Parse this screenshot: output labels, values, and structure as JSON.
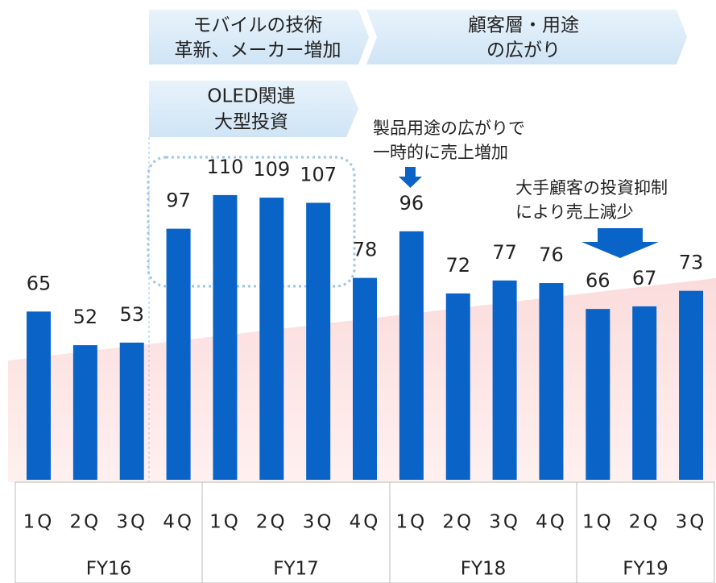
{
  "chart_data": {
    "type": "bar",
    "color": "#0a64c8",
    "groups": [
      {
        "name": "FY16",
        "categories": [
          "1Q",
          "2Q",
          "3Q",
          "4Q"
        ],
        "values": [
          65,
          52,
          53,
          97
        ]
      },
      {
        "name": "FY17",
        "categories": [
          "1Q",
          "2Q",
          "3Q",
          "4Q"
        ],
        "values": [
          110,
          109,
          107,
          78
        ]
      },
      {
        "name": "FY18",
        "categories": [
          "1Q",
          "2Q",
          "3Q",
          "4Q"
        ],
        "values": [
          96,
          72,
          77,
          76
        ]
      },
      {
        "name": "FY19",
        "categories": [
          "1Q",
          "2Q",
          "3Q"
        ],
        "values": [
          66,
          67,
          73
        ]
      }
    ],
    "annotations": {
      "mobile": [
        "モバイルの技術",
        "革新、メーカー増加"
      ],
      "customer": [
        "顧客層・用途",
        "の広がり"
      ],
      "oled": [
        "OLED関連",
        "大型投資"
      ],
      "temporary": [
        "製品用途の広がりで",
        "一時的に売上増加"
      ],
      "decline": [
        "大手顧客の投資抑制",
        "により売上減少"
      ]
    }
  }
}
